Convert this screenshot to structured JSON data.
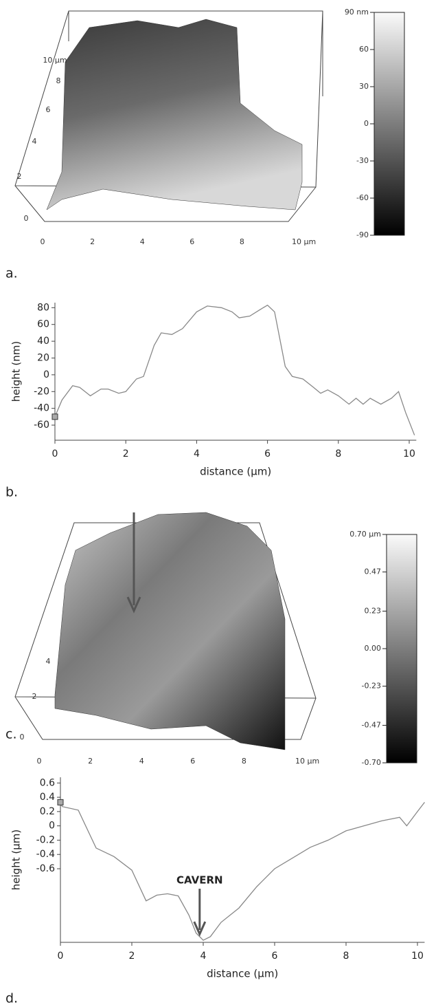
{
  "panel_labels": [
    "a.",
    "b.",
    "c.",
    "d."
  ],
  "chart_data": [
    {
      "type": "surface3d",
      "xticks": [
        0,
        2,
        4,
        6,
        8,
        {
          "value": 10,
          "label": "10 µm"
        }
      ],
      "depth_ticks": [
        0,
        2,
        4,
        6,
        8,
        {
          "value": 10,
          "label": "10 µm"
        }
      ],
      "colorbar": {
        "lim": [
          -90,
          90
        ],
        "ticks": [
          {
            "value": 90,
            "label": "90 nm"
          },
          60,
          30,
          0,
          -30,
          -60,
          -90
        ]
      }
    },
    {
      "type": "line",
      "xlabel": "distance (µm)",
      "ylabel": "height (nm)",
      "x": [
        0,
        0.2,
        0.5,
        0.7,
        1.0,
        1.3,
        1.5,
        1.8,
        2.0,
        2.3,
        2.5,
        2.8,
        3.0,
        3.3,
        3.6,
        4.0,
        4.3,
        4.7,
        5.0,
        5.2,
        5.5,
        5.8,
        6.0,
        6.2,
        6.5,
        6.7,
        7.0,
        7.3,
        7.5,
        7.7,
        8.0,
        8.3,
        8.5,
        8.7,
        8.9,
        9.2,
        9.5,
        9.7,
        9.9,
        10.15
      ],
      "values": [
        -50,
        -30,
        -13,
        -15,
        -25,
        -17,
        -17,
        -22,
        -20,
        -5,
        -2,
        35,
        50,
        48,
        55,
        75,
        82,
        80,
        75,
        68,
        70,
        78,
        83,
        75,
        10,
        -2,
        -5,
        -15,
        -22,
        -18,
        -25,
        -35,
        -28,
        -35,
        -28,
        -35,
        -28,
        -20,
        -45,
        -72
      ],
      "color": "#888888",
      "xlim": [
        0,
        10.2
      ],
      "xticks": [
        0,
        2,
        4,
        6,
        8,
        10
      ],
      "ylim": [
        -78,
        86
      ],
      "yticks": [
        80,
        60,
        40,
        20,
        0,
        -20,
        -40,
        -60
      ]
    },
    {
      "type": "surface3d",
      "xticks": [
        0,
        2,
        4,
        6,
        8,
        {
          "value": 10,
          "label": "10 µm"
        }
      ],
      "depth_ticks": [
        0,
        2,
        4
      ],
      "colorbar": {
        "lim": [
          -0.7,
          0.7
        ],
        "ticks": [
          {
            "value": 0.7,
            "label": "0.70 µm"
          },
          {
            "value": 0.47,
            "label": "0.47"
          },
          {
            "value": 0.23,
            "label": "0.23"
          },
          {
            "value": 0,
            "label": "0.00"
          },
          {
            "value": -0.23,
            "label": "-0.23"
          },
          {
            "value": -0.47,
            "label": "-0.47"
          },
          {
            "value": -0.7,
            "label": "-0.70"
          }
        ]
      }
    },
    {
      "type": "line",
      "xlabel": "distance (µm)",
      "ylabel": "height (µm)",
      "annotation": "CAVERN",
      "x": [
        0,
        0.05,
        0.5,
        1.0,
        1.5,
        2.0,
        2.4,
        2.7,
        3.0,
        3.3,
        3.6,
        3.8,
        4.0,
        4.2,
        4.5,
        5.0,
        5.5,
        6.0,
        6.5,
        7.0,
        7.5,
        8.0,
        8.5,
        9.0,
        9.5,
        9.7,
        10.0,
        10.2
      ],
      "values": [
        0.33,
        0.27,
        0.22,
        -0.31,
        -0.43,
        -0.62,
        -1.05,
        -0.97,
        -0.95,
        -0.98,
        -1.25,
        -1.5,
        -1.6,
        -1.55,
        -1.35,
        -1.15,
        -0.85,
        -0.6,
        -0.45,
        -0.3,
        -0.2,
        -0.07,
        0.0,
        0.07,
        0.12,
        0.0,
        0.2,
        0.33
      ],
      "color": "#888888",
      "xlim": [
        0,
        10.2
      ],
      "xticks": [
        0,
        2,
        4,
        6,
        8,
        10
      ],
      "ylim": [
        -1.63,
        0.68
      ],
      "yticks": [
        0.6,
        0.4,
        0.2,
        0,
        -0.2,
        -0.4,
        -0.6
      ]
    }
  ]
}
